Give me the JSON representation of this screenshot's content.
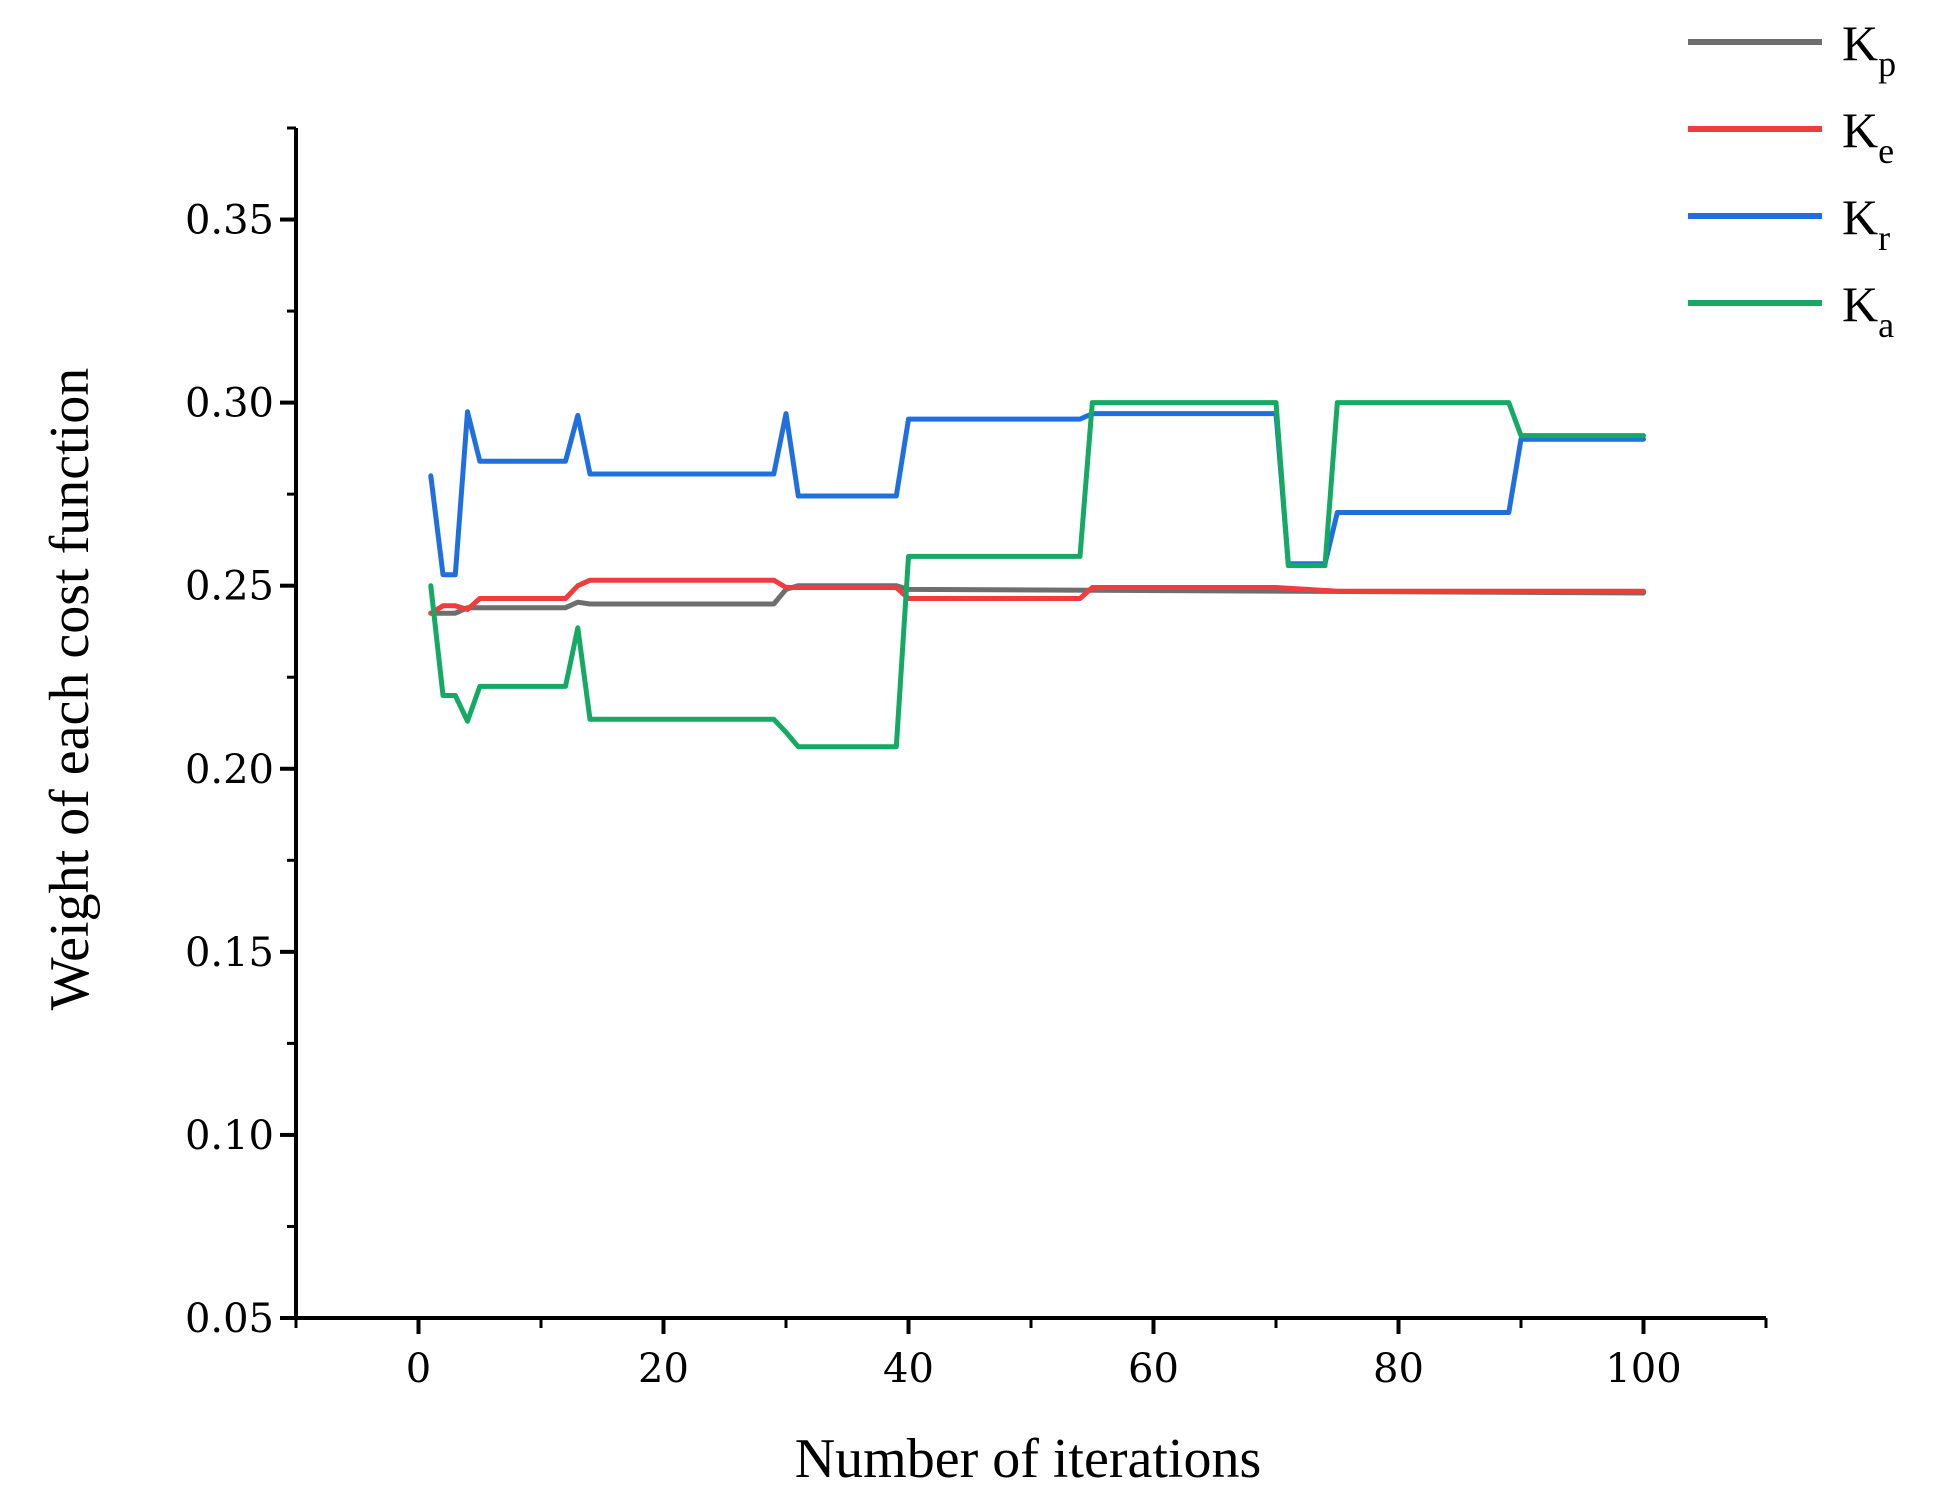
{
  "chart_data": {
    "type": "line",
    "title": "",
    "xlabel": "Number of iterations",
    "ylabel": "Weight of each cost function",
    "xlim": [
      -10,
      110
    ],
    "ylim": [
      0.05,
      0.375
    ],
    "xticks": [
      0,
      20,
      40,
      60,
      80,
      100
    ],
    "xtick_labels": [
      "0",
      "20",
      "40",
      "60",
      "80",
      "100"
    ],
    "yticks": [
      0.05,
      0.1,
      0.15,
      0.2,
      0.25,
      0.3,
      0.35
    ],
    "ytick_labels": [
      "0.05",
      "0.10",
      "0.15",
      "0.20",
      "0.25",
      "0.30",
      "0.35"
    ],
    "legend_position": "top-right",
    "series": [
      {
        "name": "Kp",
        "base": "K",
        "sub": "p",
        "color": "#6e6e6e",
        "points": [
          [
            1,
            0.2425
          ],
          [
            2,
            0.2425
          ],
          [
            3,
            0.2425
          ],
          [
            4,
            0.244
          ],
          [
            5,
            0.244
          ],
          [
            12,
            0.244
          ],
          [
            13,
            0.2455
          ],
          [
            14,
            0.245
          ],
          [
            29,
            0.245
          ],
          [
            30,
            0.249
          ],
          [
            31,
            0.25
          ],
          [
            39,
            0.25
          ],
          [
            40,
            0.249
          ],
          [
            100,
            0.248
          ]
        ]
      },
      {
        "name": "Ke",
        "base": "K",
        "sub": "e",
        "color": "#f03c3c",
        "points": [
          [
            1,
            0.2425
          ],
          [
            2,
            0.2445
          ],
          [
            3,
            0.2445
          ],
          [
            4,
            0.2435
          ],
          [
            5,
            0.2465
          ],
          [
            12,
            0.2465
          ],
          [
            13,
            0.25
          ],
          [
            14,
            0.2515
          ],
          [
            29,
            0.2515
          ],
          [
            30,
            0.2495
          ],
          [
            39,
            0.2495
          ],
          [
            40,
            0.2465
          ],
          [
            54,
            0.2465
          ],
          [
            55,
            0.2495
          ],
          [
            70,
            0.2495
          ],
          [
            75,
            0.2485
          ],
          [
            100,
            0.2485
          ]
        ]
      },
      {
        "name": "Kr",
        "base": "K",
        "sub": "r",
        "color": "#1f6fe0",
        "points": [
          [
            1,
            0.28
          ],
          [
            2,
            0.253
          ],
          [
            3,
            0.253
          ],
          [
            4,
            0.2975
          ],
          [
            5,
            0.284
          ],
          [
            12,
            0.284
          ],
          [
            13,
            0.2965
          ],
          [
            14,
            0.2805
          ],
          [
            29,
            0.2805
          ],
          [
            30,
            0.297
          ],
          [
            31,
            0.2745
          ],
          [
            39,
            0.2745
          ],
          [
            40,
            0.2955
          ],
          [
            54,
            0.2955
          ],
          [
            55,
            0.297
          ],
          [
            70,
            0.297
          ],
          [
            71,
            0.256
          ],
          [
            74,
            0.256
          ],
          [
            75,
            0.27
          ],
          [
            89,
            0.27
          ],
          [
            90,
            0.29
          ],
          [
            100,
            0.29
          ]
        ]
      },
      {
        "name": "Ka",
        "base": "K",
        "sub": "a",
        "color": "#14aa64",
        "points": [
          [
            1,
            0.25
          ],
          [
            2,
            0.22
          ],
          [
            3,
            0.22
          ],
          [
            4,
            0.213
          ],
          [
            5,
            0.2225
          ],
          [
            12,
            0.2225
          ],
          [
            13,
            0.2385
          ],
          [
            14,
            0.2135
          ],
          [
            29,
            0.2135
          ],
          [
            30,
            0.21
          ],
          [
            31,
            0.206
          ],
          [
            39,
            0.206
          ],
          [
            40,
            0.258
          ],
          [
            54,
            0.258
          ],
          [
            55,
            0.3
          ],
          [
            70,
            0.3
          ],
          [
            71,
            0.2555
          ],
          [
            74,
            0.2555
          ],
          [
            75,
            0.3
          ],
          [
            89,
            0.3
          ],
          [
            90,
            0.291
          ],
          [
            100,
            0.291
          ]
        ]
      }
    ]
  }
}
